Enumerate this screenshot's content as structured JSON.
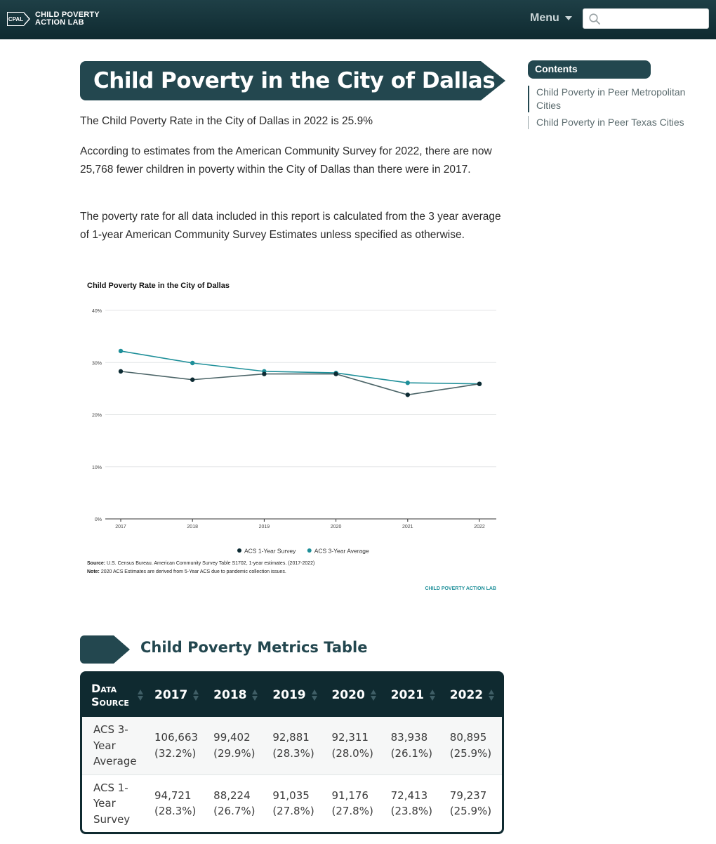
{
  "header": {
    "logo_mark": "CPAL",
    "logo_line1": "CHILD POVERTY",
    "logo_line2": "ACTION LAB",
    "menu_label": "Menu",
    "search_placeholder": ""
  },
  "main": {
    "title": "Child Poverty in the City of Dallas",
    "paragraphs": [
      "The Child Poverty Rate in the City of Dallas in 2022 is 25.9%",
      "According to estimates from the American Community Survey for 2022, there are now 25,768 fewer children in poverty within the City of Dallas than there were in 2017.",
      "The poverty rate for all data included in this report is calculated from the 3 year average of 1-year American Community Survey Estimates unless specified as otherwise."
    ],
    "section_title": "Child Poverty Metrics Table"
  },
  "sidebar": {
    "contents_label": "Contents",
    "items": [
      {
        "label": "Child Poverty in Peer Metropolitan Cities"
      },
      {
        "label": "Child Poverty in Peer Texas Cities"
      }
    ]
  },
  "chart_data": {
    "type": "line",
    "title": "Child Poverty Rate in the City of Dallas",
    "x": [
      "2017",
      "2018",
      "2019",
      "2020",
      "2021",
      "2022"
    ],
    "ylim": [
      0,
      40
    ],
    "yticks": [
      "0%",
      "10%",
      "20%",
      "30%",
      "40%"
    ],
    "grid": true,
    "legend_position": "bottom",
    "series": [
      {
        "name": "ACS 1-Year Survey",
        "color": "#0d2b33",
        "values": [
          28.3,
          26.7,
          27.8,
          27.8,
          23.8,
          25.9
        ]
      },
      {
        "name": "ACS 3-Year Average",
        "color": "#1e8f99",
        "values": [
          32.2,
          29.9,
          28.3,
          28.0,
          26.1,
          25.9
        ]
      }
    ],
    "source_label": "Source:",
    "source_text": "U.S. Census Bureau. American Community Survey Table S1702, 1-year estimates. (2017-2022)",
    "note_label": "Note:",
    "note_text": "2020 ACS Estimates are derived from 5-Year ACS due to pandemic collection issues.",
    "credit": "CHILD POVERTY ACTION LAB"
  },
  "table": {
    "header_source": "Data Source",
    "columns": [
      "2017",
      "2018",
      "2019",
      "2020",
      "2021",
      "2022"
    ],
    "rows": [
      {
        "source": "ACS 3-Year Average",
        "cells": [
          {
            "count": "106,663",
            "pct": "(32.2%)"
          },
          {
            "count": "99,402",
            "pct": "(29.9%)"
          },
          {
            "count": "92,881",
            "pct": "(28.3%)"
          },
          {
            "count": "92,311",
            "pct": "(28.0%)"
          },
          {
            "count": "83,938",
            "pct": "(26.1%)"
          },
          {
            "count": "80,895",
            "pct": "(25.9%)"
          }
        ]
      },
      {
        "source": "ACS 1-Year Survey",
        "cells": [
          {
            "count": "94,721",
            "pct": "(28.3%)"
          },
          {
            "count": "88,224",
            "pct": "(26.7%)"
          },
          {
            "count": "91,035",
            "pct": "(27.8%)"
          },
          {
            "count": "91,176",
            "pct": "(27.8%)"
          },
          {
            "count": "72,413",
            "pct": "(23.8%)"
          },
          {
            "count": "79,237",
            "pct": "(25.9%)"
          }
        ]
      }
    ]
  }
}
